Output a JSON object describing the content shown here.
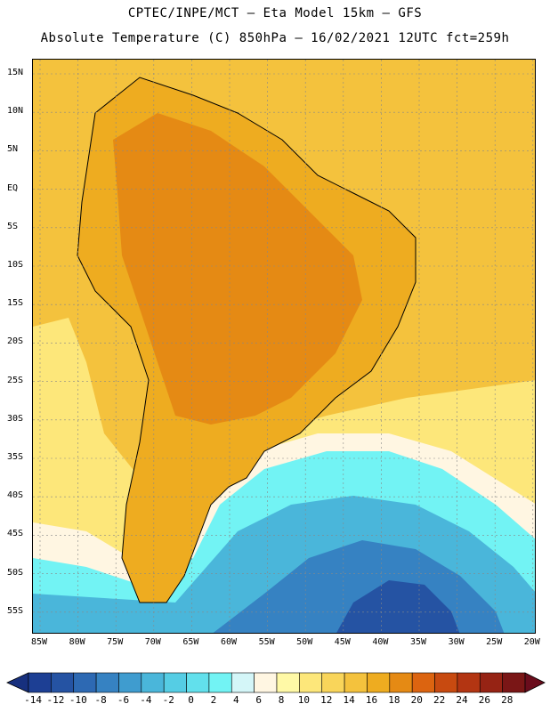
{
  "header": {
    "line1": "CPTEC/INPE/MCT –  Eta Model 15km – GFS",
    "line2": "Absolute Temperature (C) 850hPa – 16/02/2021 12UTC fct=259h"
  },
  "axes": {
    "lat_labels": [
      "15N",
      "10N",
      "5N",
      "EQ",
      "5S",
      "10S",
      "15S",
      "20S",
      "25S",
      "30S",
      "35S",
      "40S",
      "45S",
      "50S",
      "55S"
    ],
    "lon_labels": [
      "85W",
      "80W",
      "75W",
      "70W",
      "65W",
      "60W",
      "55W",
      "50W",
      "45W",
      "40W",
      "35W",
      "30W",
      "25W",
      "20W"
    ]
  },
  "colorbar": {
    "labels": [
      "-14",
      "-12",
      "-10",
      "-8",
      "-6",
      "-4",
      "-2",
      "0",
      "2",
      "4",
      "6",
      "8",
      "10",
      "12",
      "14",
      "16",
      "18",
      "20",
      "22",
      "24",
      "26",
      "28"
    ],
    "colors": [
      "#1d3f94",
      "#2553a3",
      "#2d69b3",
      "#3682c2",
      "#3f9ccf",
      "#4ab6da",
      "#55cde4",
      "#62e0ec",
      "#72f3f4",
      "#d4f6f8",
      "#fff6e2",
      "#fff9a6",
      "#fde77a",
      "#f9d55a",
      "#f4c23d",
      "#eeac20",
      "#e58a14",
      "#dc6410",
      "#c84a10",
      "#b33512",
      "#962314",
      "#7a1616"
    ],
    "under_color": "#17307e",
    "over_color": "#6a0c1c"
  },
  "map": {
    "land_color": "#e58a14",
    "warm_color": "#eeac20",
    "sea_warm_color": "#f4c23d",
    "sea_mid_color": "#fde77a",
    "sea_cool_color": "#fff6e2",
    "cold_color_1": "#72f3f4",
    "cold_color_2": "#4ab6da",
    "cold_color_3": "#3682c2",
    "cold_color_4": "#2553a3"
  }
}
